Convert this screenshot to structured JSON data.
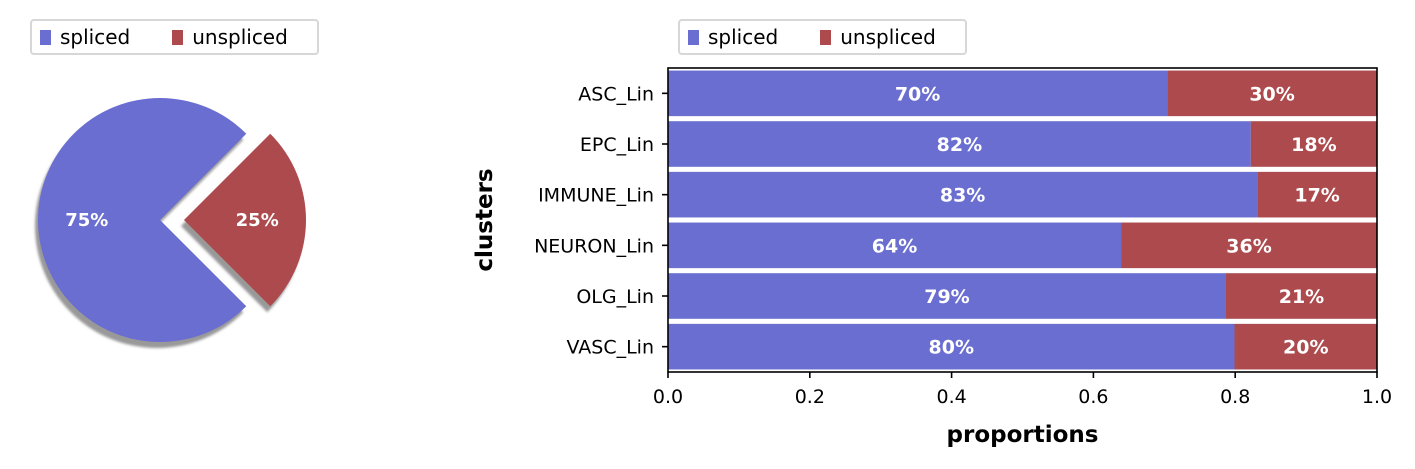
{
  "colors": {
    "spliced": "#6a6ed1",
    "unspliced": "#ad4a4d",
    "label_text": "#ffffff"
  },
  "legend_pie": [
    {
      "label": "spliced",
      "color": "#6a6ed1"
    },
    {
      "label": "unspliced",
      "color": "#ad4a4d"
    }
  ],
  "legend_bar": [
    {
      "label": "spliced",
      "color": "#6a6ed1"
    },
    {
      "label": "unspliced",
      "color": "#ad4a4d"
    }
  ],
  "chart_data": [
    {
      "type": "pie",
      "categories": [
        "spliced",
        "unspliced"
      ],
      "values": [
        75,
        25
      ],
      "labels": [
        "75%",
        "25%"
      ],
      "exploded": [
        "unspliced"
      ],
      "shadow": true,
      "legend": "top-left"
    },
    {
      "type": "bar",
      "orientation": "horizontal",
      "stacked": true,
      "categories": [
        "ASC_Lin",
        "EPC_Lin",
        "IMMUNE_Lin",
        "NEURON_Lin",
        "OLG_Lin",
        "VASC_Lin"
      ],
      "series": [
        {
          "name": "spliced",
          "values": [
            0.704,
            0.822,
            0.831,
            0.639,
            0.787,
            0.799
          ],
          "labels": [
            "70%",
            "82%",
            "83%",
            "64%",
            "79%",
            "80%"
          ]
        },
        {
          "name": "unspliced",
          "values": [
            0.296,
            0.178,
            0.169,
            0.361,
            0.213,
            0.201
          ],
          "labels": [
            "30%",
            "18%",
            "17%",
            "36%",
            "21%",
            "20%"
          ]
        }
      ],
      "xlabel": "proportions",
      "ylabel": "clusters",
      "xlim": [
        0,
        1
      ],
      "xticks": [
        "0.0",
        "0.2",
        "0.4",
        "0.6",
        "0.8",
        "1.0"
      ],
      "grid": false,
      "legend": "top-left"
    }
  ]
}
